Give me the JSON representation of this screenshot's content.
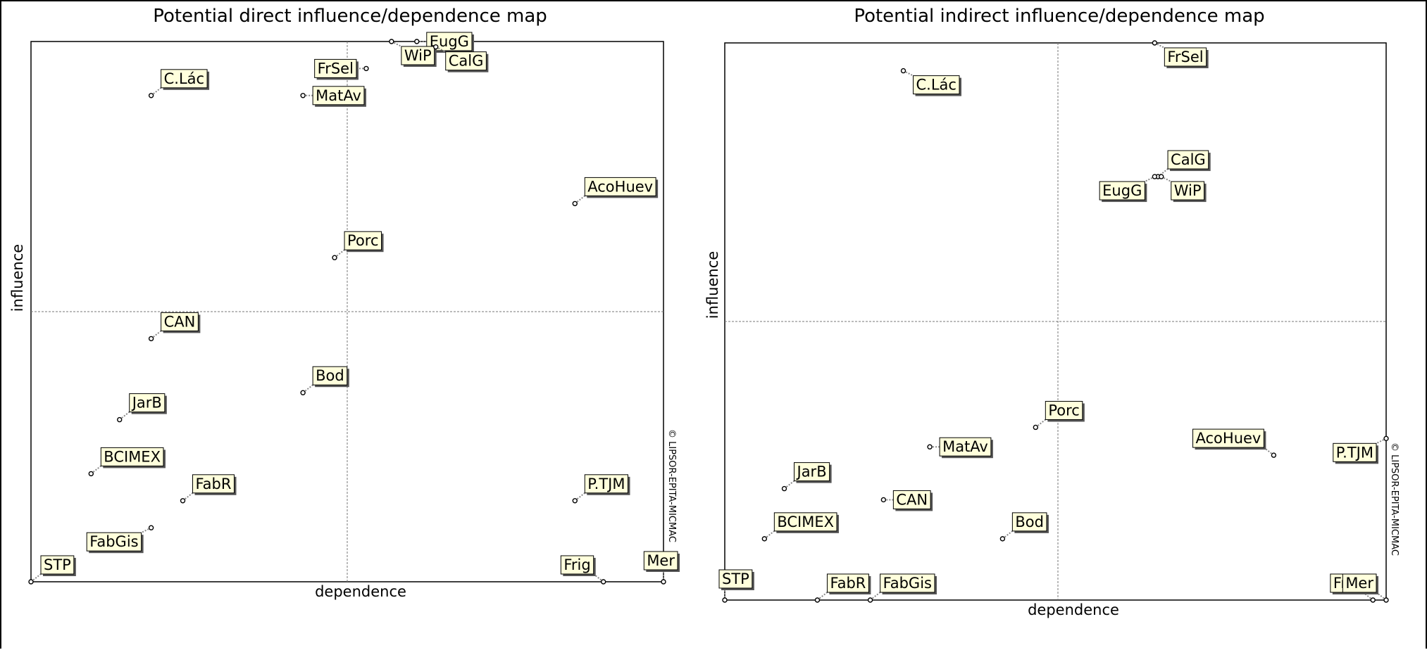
{
  "chart_data": [
    {
      "type": "scatter",
      "title": "Potential direct influence/dependence map",
      "xlabel": "dependence",
      "ylabel": "influence",
      "copyright": "© LIPSOR-EPITA-MICMAC",
      "grid": true,
      "x_mid_fraction": 0.5,
      "y_mid_fraction": 0.5,
      "points": [
        {
          "label": "C.Lác",
          "x": 0.19,
          "y": 0.9,
          "dir": "ne"
        },
        {
          "label": "FrSel",
          "x": 0.53,
          "y": 0.95,
          "dir": "w"
        },
        {
          "label": "MatAv",
          "x": 0.43,
          "y": 0.9,
          "dir": "e"
        },
        {
          "label": "EugG",
          "x": 0.61,
          "y": 1.0,
          "dir": "e"
        },
        {
          "label": "WiP",
          "x": 0.57,
          "y": 1.0,
          "dir": "se"
        },
        {
          "label": "CalG",
          "x": 0.64,
          "y": 0.99,
          "dir": "se"
        },
        {
          "label": "AcoHuev",
          "x": 0.86,
          "y": 0.7,
          "dir": "ne"
        },
        {
          "label": "Porc",
          "x": 0.48,
          "y": 0.6,
          "dir": "ne"
        },
        {
          "label": "CAN",
          "x": 0.19,
          "y": 0.45,
          "dir": "ne"
        },
        {
          "label": "Bod",
          "x": 0.43,
          "y": 0.35,
          "dir": "ne"
        },
        {
          "label": "JarB",
          "x": 0.14,
          "y": 0.3,
          "dir": "ne"
        },
        {
          "label": "BCIMEX",
          "x": 0.095,
          "y": 0.2,
          "dir": "ne"
        },
        {
          "label": "FabR",
          "x": 0.24,
          "y": 0.15,
          "dir": "ne"
        },
        {
          "label": "P.TJM",
          "x": 0.86,
          "y": 0.15,
          "dir": "ne"
        },
        {
          "label": "FabGis",
          "x": 0.19,
          "y": 0.1,
          "dir": "sw"
        },
        {
          "label": "STP",
          "x": 0.0,
          "y": 0.0,
          "dir": "ne"
        },
        {
          "label": "Frig",
          "x": 0.905,
          "y": 0.0,
          "dir": "nw"
        },
        {
          "label": "Mer",
          "x": 1.0,
          "y": 0.0,
          "dir": "n"
        }
      ]
    },
    {
      "type": "scatter",
      "title": "Potential indirect influence/dependence map",
      "xlabel": "dependence",
      "ylabel": "influence",
      "copyright": "© LIPSOR-EPITA-MICMAC",
      "grid": true,
      "x_mid_fraction": 0.5,
      "y_mid_fraction": 0.5,
      "points": [
        {
          "label": "FrSel",
          "x": 0.65,
          "y": 1.0,
          "dir": "se"
        },
        {
          "label": "C.Lác",
          "x": 0.27,
          "y": 0.95,
          "dir": "se"
        },
        {
          "label": "CalG",
          "x": 0.655,
          "y": 0.76,
          "dir": "ne"
        },
        {
          "label": "WiP",
          "x": 0.66,
          "y": 0.76,
          "dir": "se"
        },
        {
          "label": "EugG",
          "x": 0.65,
          "y": 0.76,
          "dir": "sw"
        },
        {
          "label": "Porc",
          "x": 0.47,
          "y": 0.31,
          "dir": "ne"
        },
        {
          "label": "AcoHuev",
          "x": 0.83,
          "y": 0.26,
          "dir": "nw"
        },
        {
          "label": "P.TJM",
          "x": 1.0,
          "y": 0.29,
          "dir": "sw"
        },
        {
          "label": "MatAv",
          "x": 0.31,
          "y": 0.275,
          "dir": "e"
        },
        {
          "label": "JarB",
          "x": 0.09,
          "y": 0.2,
          "dir": "ne"
        },
        {
          "label": "CAN",
          "x": 0.24,
          "y": 0.18,
          "dir": "e"
        },
        {
          "label": "Bod",
          "x": 0.42,
          "y": 0.11,
          "dir": "ne"
        },
        {
          "label": "BCIMEX",
          "x": 0.06,
          "y": 0.11,
          "dir": "ne"
        },
        {
          "label": "STP",
          "x": 0.0,
          "y": 0.0,
          "dir": "n"
        },
        {
          "label": "FabR",
          "x": 0.14,
          "y": 0.0,
          "dir": "ne"
        },
        {
          "label": "FabGis",
          "x": 0.22,
          "y": 0.0,
          "dir": "ne"
        },
        {
          "label": "Frig",
          "x": 0.98,
          "y": 0.0,
          "dir": "nw"
        },
        {
          "label": "Mer",
          "x": 1.0,
          "y": 0.0,
          "dir": "nw"
        }
      ]
    }
  ]
}
